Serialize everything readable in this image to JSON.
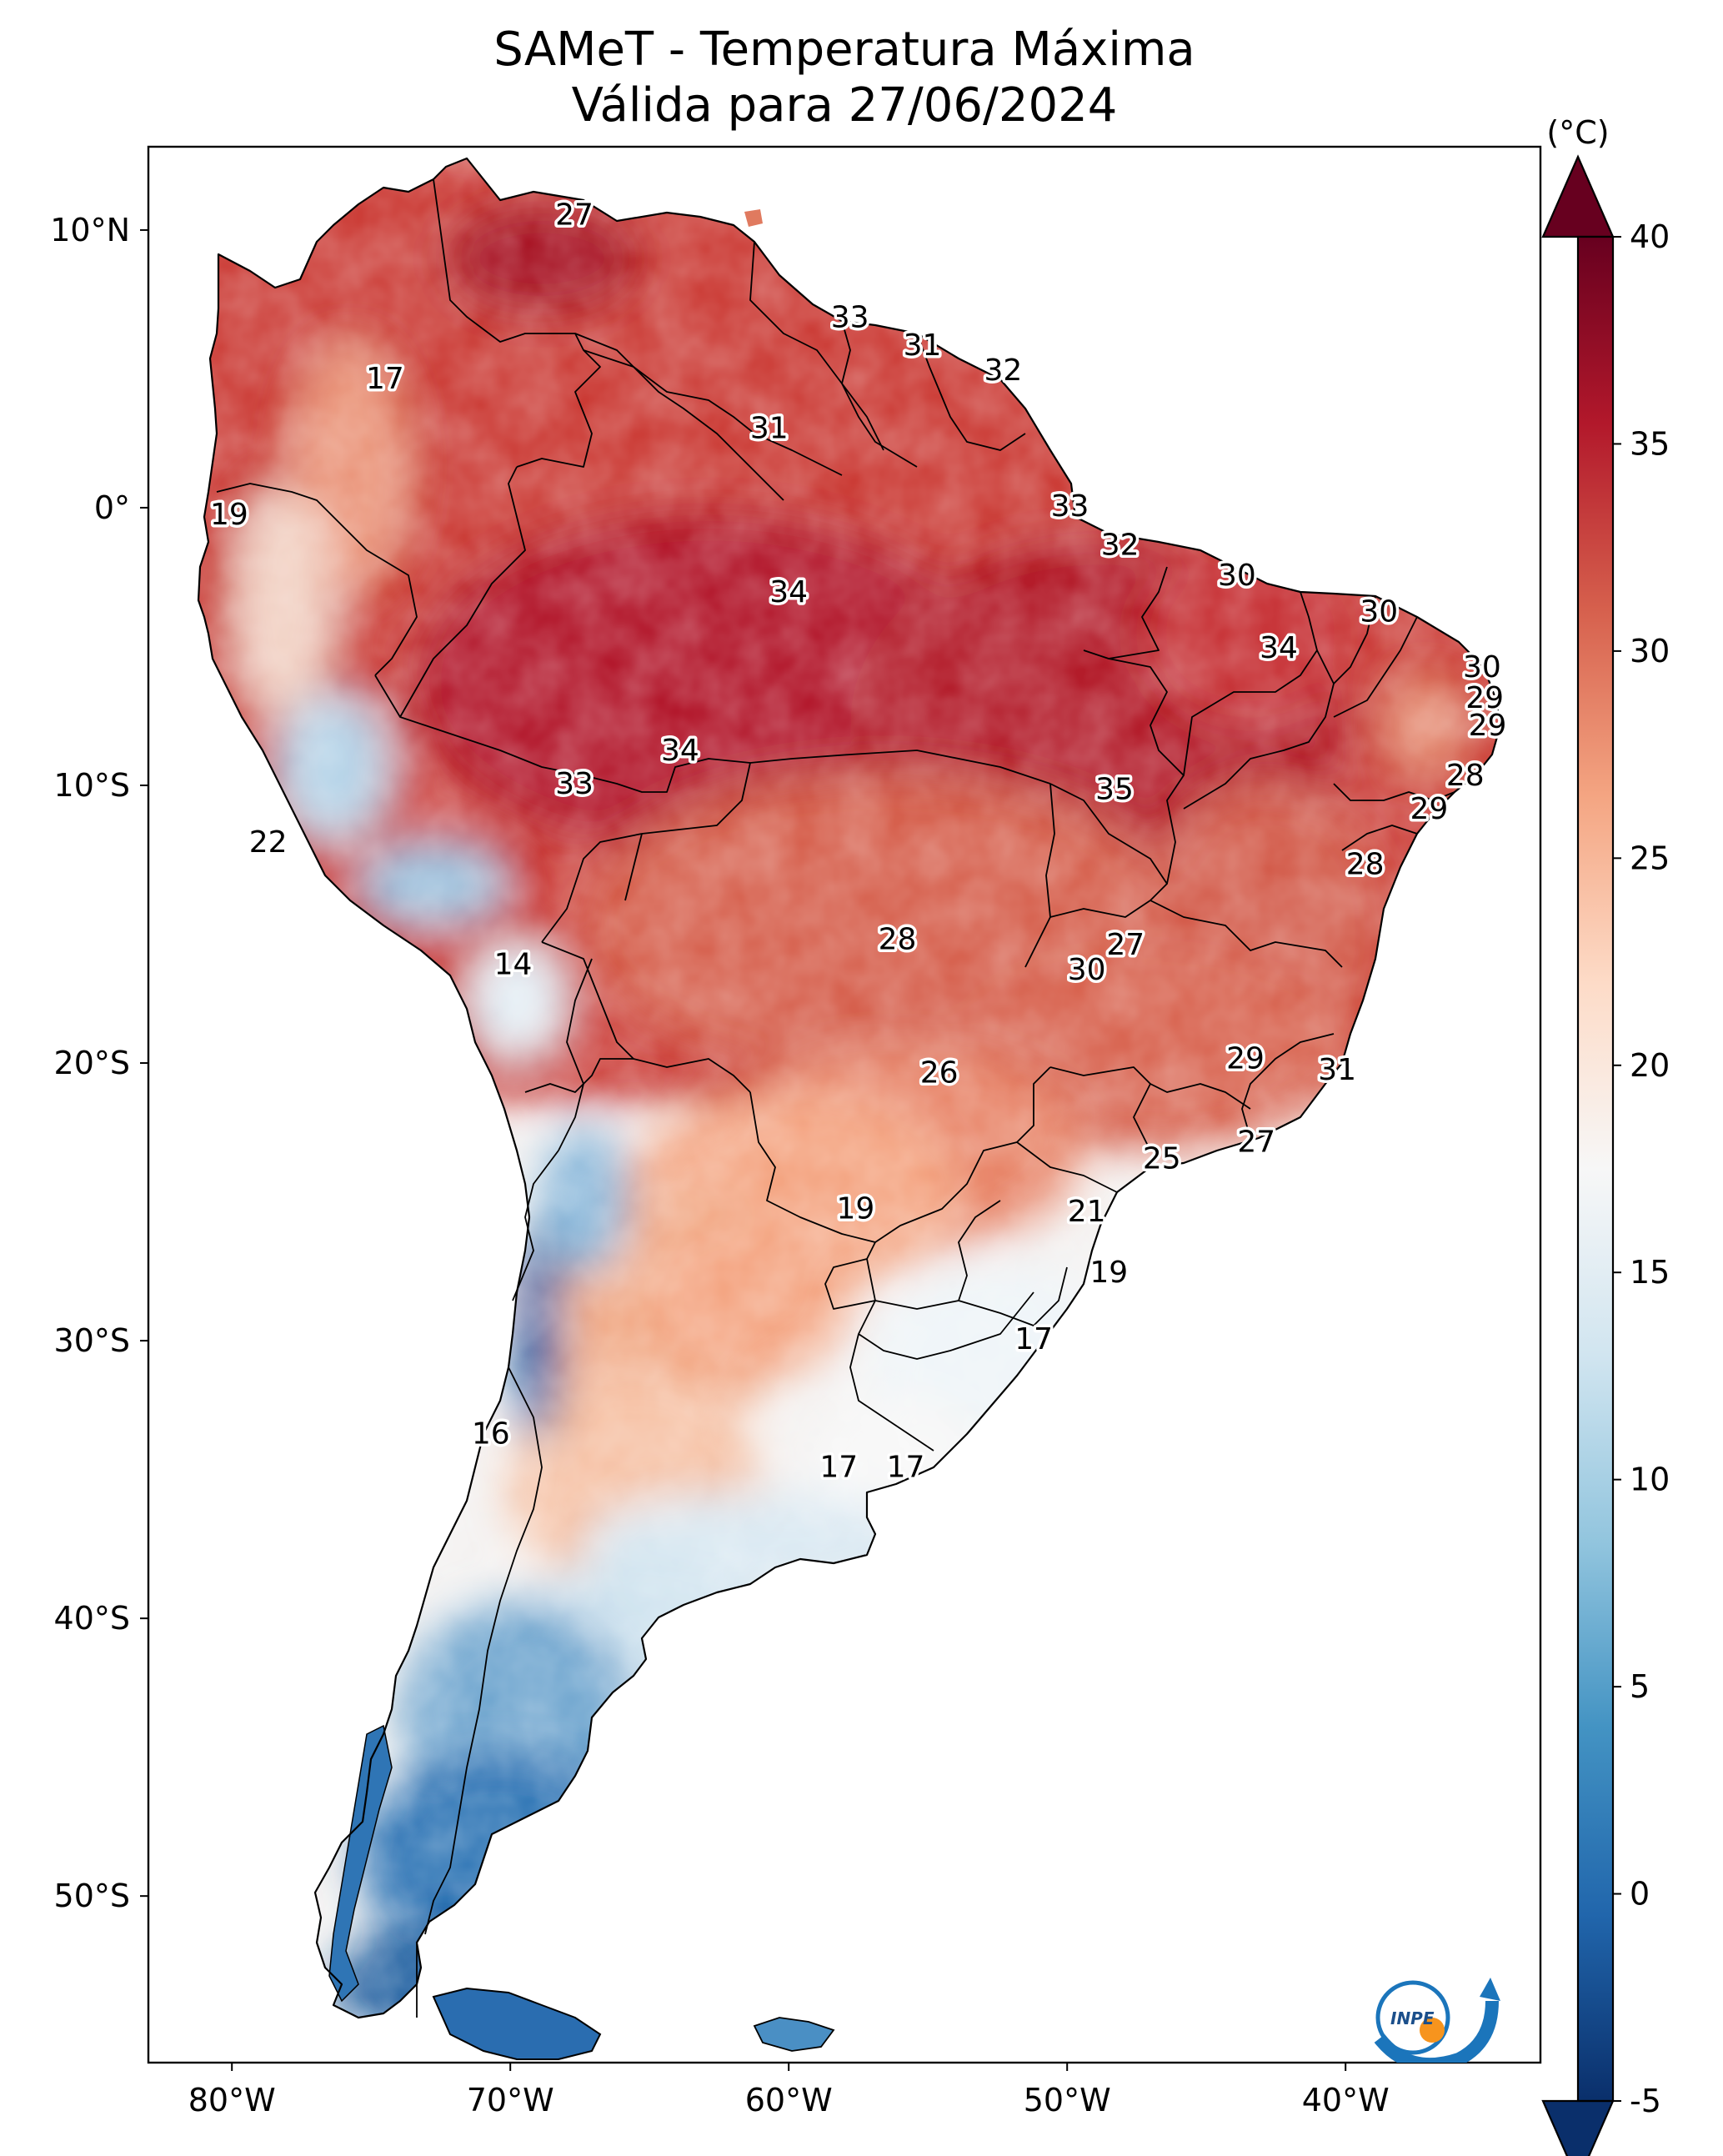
{
  "title": {
    "line1": "SAMeT - Temperatura Máxima",
    "line2": "Válida para 27/06/2024"
  },
  "axes": {
    "lon_ticks": [
      "80°W",
      "70°W",
      "60°W",
      "50°W",
      "40°W"
    ],
    "lat_ticks": [
      "10°N",
      "0°",
      "10°S",
      "20°S",
      "30°S",
      "40°S",
      "50°S"
    ],
    "lon_range": [
      -83,
      -33
    ],
    "lat_range": [
      -56,
      13
    ]
  },
  "colorbar": {
    "unit": "(°C)",
    "min": -5,
    "max": 40,
    "ticks": [
      "-5",
      "0",
      "5",
      "10",
      "15",
      "20",
      "25",
      "30",
      "35",
      "40"
    ],
    "colors": [
      "#0a2f6b",
      "#2166ac",
      "#4393c3",
      "#92c5de",
      "#d1e5f0",
      "#f7f7f7",
      "#fddbc7",
      "#f4a582",
      "#d6604d",
      "#b2182b",
      "#67001f"
    ]
  },
  "stations": [
    {
      "v": "27",
      "lon": -67.7,
      "lat": 10.5
    },
    {
      "v": "17",
      "lon": -74.5,
      "lat": 4.6
    },
    {
      "v": "33",
      "lon": -57.8,
      "lat": 6.8
    },
    {
      "v": "31",
      "lon": -55.2,
      "lat": 5.8
    },
    {
      "v": "32",
      "lon": -52.3,
      "lat": 4.9
    },
    {
      "v": "31",
      "lon": -60.7,
      "lat": 2.8
    },
    {
      "v": "19",
      "lon": -80.1,
      "lat": -0.3
    },
    {
      "v": "33",
      "lon": -49.9,
      "lat": 0.0
    },
    {
      "v": "32",
      "lon": -48.1,
      "lat": -1.4
    },
    {
      "v": "34",
      "lon": -60.0,
      "lat": -3.1
    },
    {
      "v": "30",
      "lon": -43.9,
      "lat": -2.5
    },
    {
      "v": "30",
      "lon": -38.8,
      "lat": -3.8
    },
    {
      "v": "34",
      "lon": -42.4,
      "lat": -5.1
    },
    {
      "v": "30",
      "lon": -35.1,
      "lat": -5.8
    },
    {
      "v": "29",
      "lon": -35.0,
      "lat": -6.9
    },
    {
      "v": "29",
      "lon": -34.9,
      "lat": -7.9
    },
    {
      "v": "34",
      "lon": -63.9,
      "lat": -8.8
    },
    {
      "v": "33",
      "lon": -67.7,
      "lat": -10.0
    },
    {
      "v": "35",
      "lon": -48.3,
      "lat": -10.2
    },
    {
      "v": "28",
      "lon": -35.7,
      "lat": -9.7
    },
    {
      "v": "29",
      "lon": -37.0,
      "lat": -10.9
    },
    {
      "v": "22",
      "lon": -78.7,
      "lat": -12.1
    },
    {
      "v": "28",
      "lon": -39.3,
      "lat": -12.9
    },
    {
      "v": "28",
      "lon": -56.1,
      "lat": -15.6
    },
    {
      "v": "27",
      "lon": -47.9,
      "lat": -15.8
    },
    {
      "v": "30",
      "lon": -49.3,
      "lat": -16.7
    },
    {
      "v": "14",
      "lon": -69.9,
      "lat": -16.5
    },
    {
      "v": "29",
      "lon": -43.6,
      "lat": -19.9
    },
    {
      "v": "26",
      "lon": -54.6,
      "lat": -20.4
    },
    {
      "v": "31",
      "lon": -40.3,
      "lat": -20.3
    },
    {
      "v": "25",
      "lon": -46.6,
      "lat": -23.5
    },
    {
      "v": "27",
      "lon": -43.2,
      "lat": -22.9
    },
    {
      "v": "19",
      "lon": -57.6,
      "lat": -25.3
    },
    {
      "v": "21",
      "lon": -49.3,
      "lat": -25.4
    },
    {
      "v": "19",
      "lon": -48.5,
      "lat": -27.6
    },
    {
      "v": "17",
      "lon": -51.2,
      "lat": -30.0
    },
    {
      "v": "16",
      "lon": -70.7,
      "lat": -33.4
    },
    {
      "v": "17",
      "lon": -58.2,
      "lat": -34.6
    },
    {
      "v": "17",
      "lon": -55.8,
      "lat": -34.6
    }
  ]
}
